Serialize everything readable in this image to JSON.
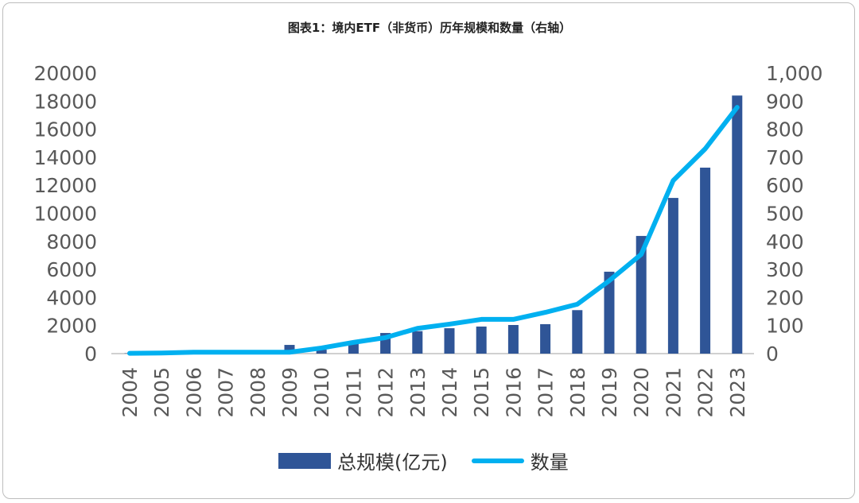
{
  "chart_data": {
    "type": "bar+line",
    "title": "图表1：境内ETF（非货币）历年规模和数量（右轴）",
    "categories": [
      "2004",
      "2005",
      "2006",
      "2007",
      "2008",
      "2009",
      "2010",
      "2011",
      "2012",
      "2013",
      "2014",
      "2015",
      "2016",
      "2017",
      "2018",
      "2019",
      "2020",
      "2021",
      "2022",
      "2023"
    ],
    "series": [
      {
        "name": "总规模(亿元)",
        "type": "bar",
        "axis": "left",
        "color": "#2F5597",
        "values": [
          20,
          40,
          60,
          80,
          60,
          620,
          280,
          740,
          1470,
          1600,
          1810,
          1930,
          2040,
          2100,
          3100,
          5840,
          8390,
          11100,
          13260,
          18400
        ]
      },
      {
        "name": "数量",
        "type": "line",
        "axis": "right",
        "color": "#00B0F0",
        "values": [
          1,
          2,
          5,
          5,
          5,
          5,
          20,
          40,
          57,
          90,
          105,
          122,
          122,
          147,
          176,
          260,
          354,
          617,
          730,
          878
        ]
      }
    ],
    "left_axis": {
      "ylim": [
        0,
        20000
      ],
      "ticks": [
        "0",
        "2000",
        "4000",
        "6000",
        "8000",
        "10000",
        "12000",
        "14000",
        "16000",
        "18000",
        "20000"
      ]
    },
    "right_axis": {
      "ylim": [
        0,
        1000
      ],
      "ticks": [
        "0",
        "100",
        "200",
        "300",
        "400",
        "500",
        "600",
        "700",
        "800",
        "900",
        "1,000"
      ]
    },
    "grid": false,
    "legend": "bottom"
  }
}
